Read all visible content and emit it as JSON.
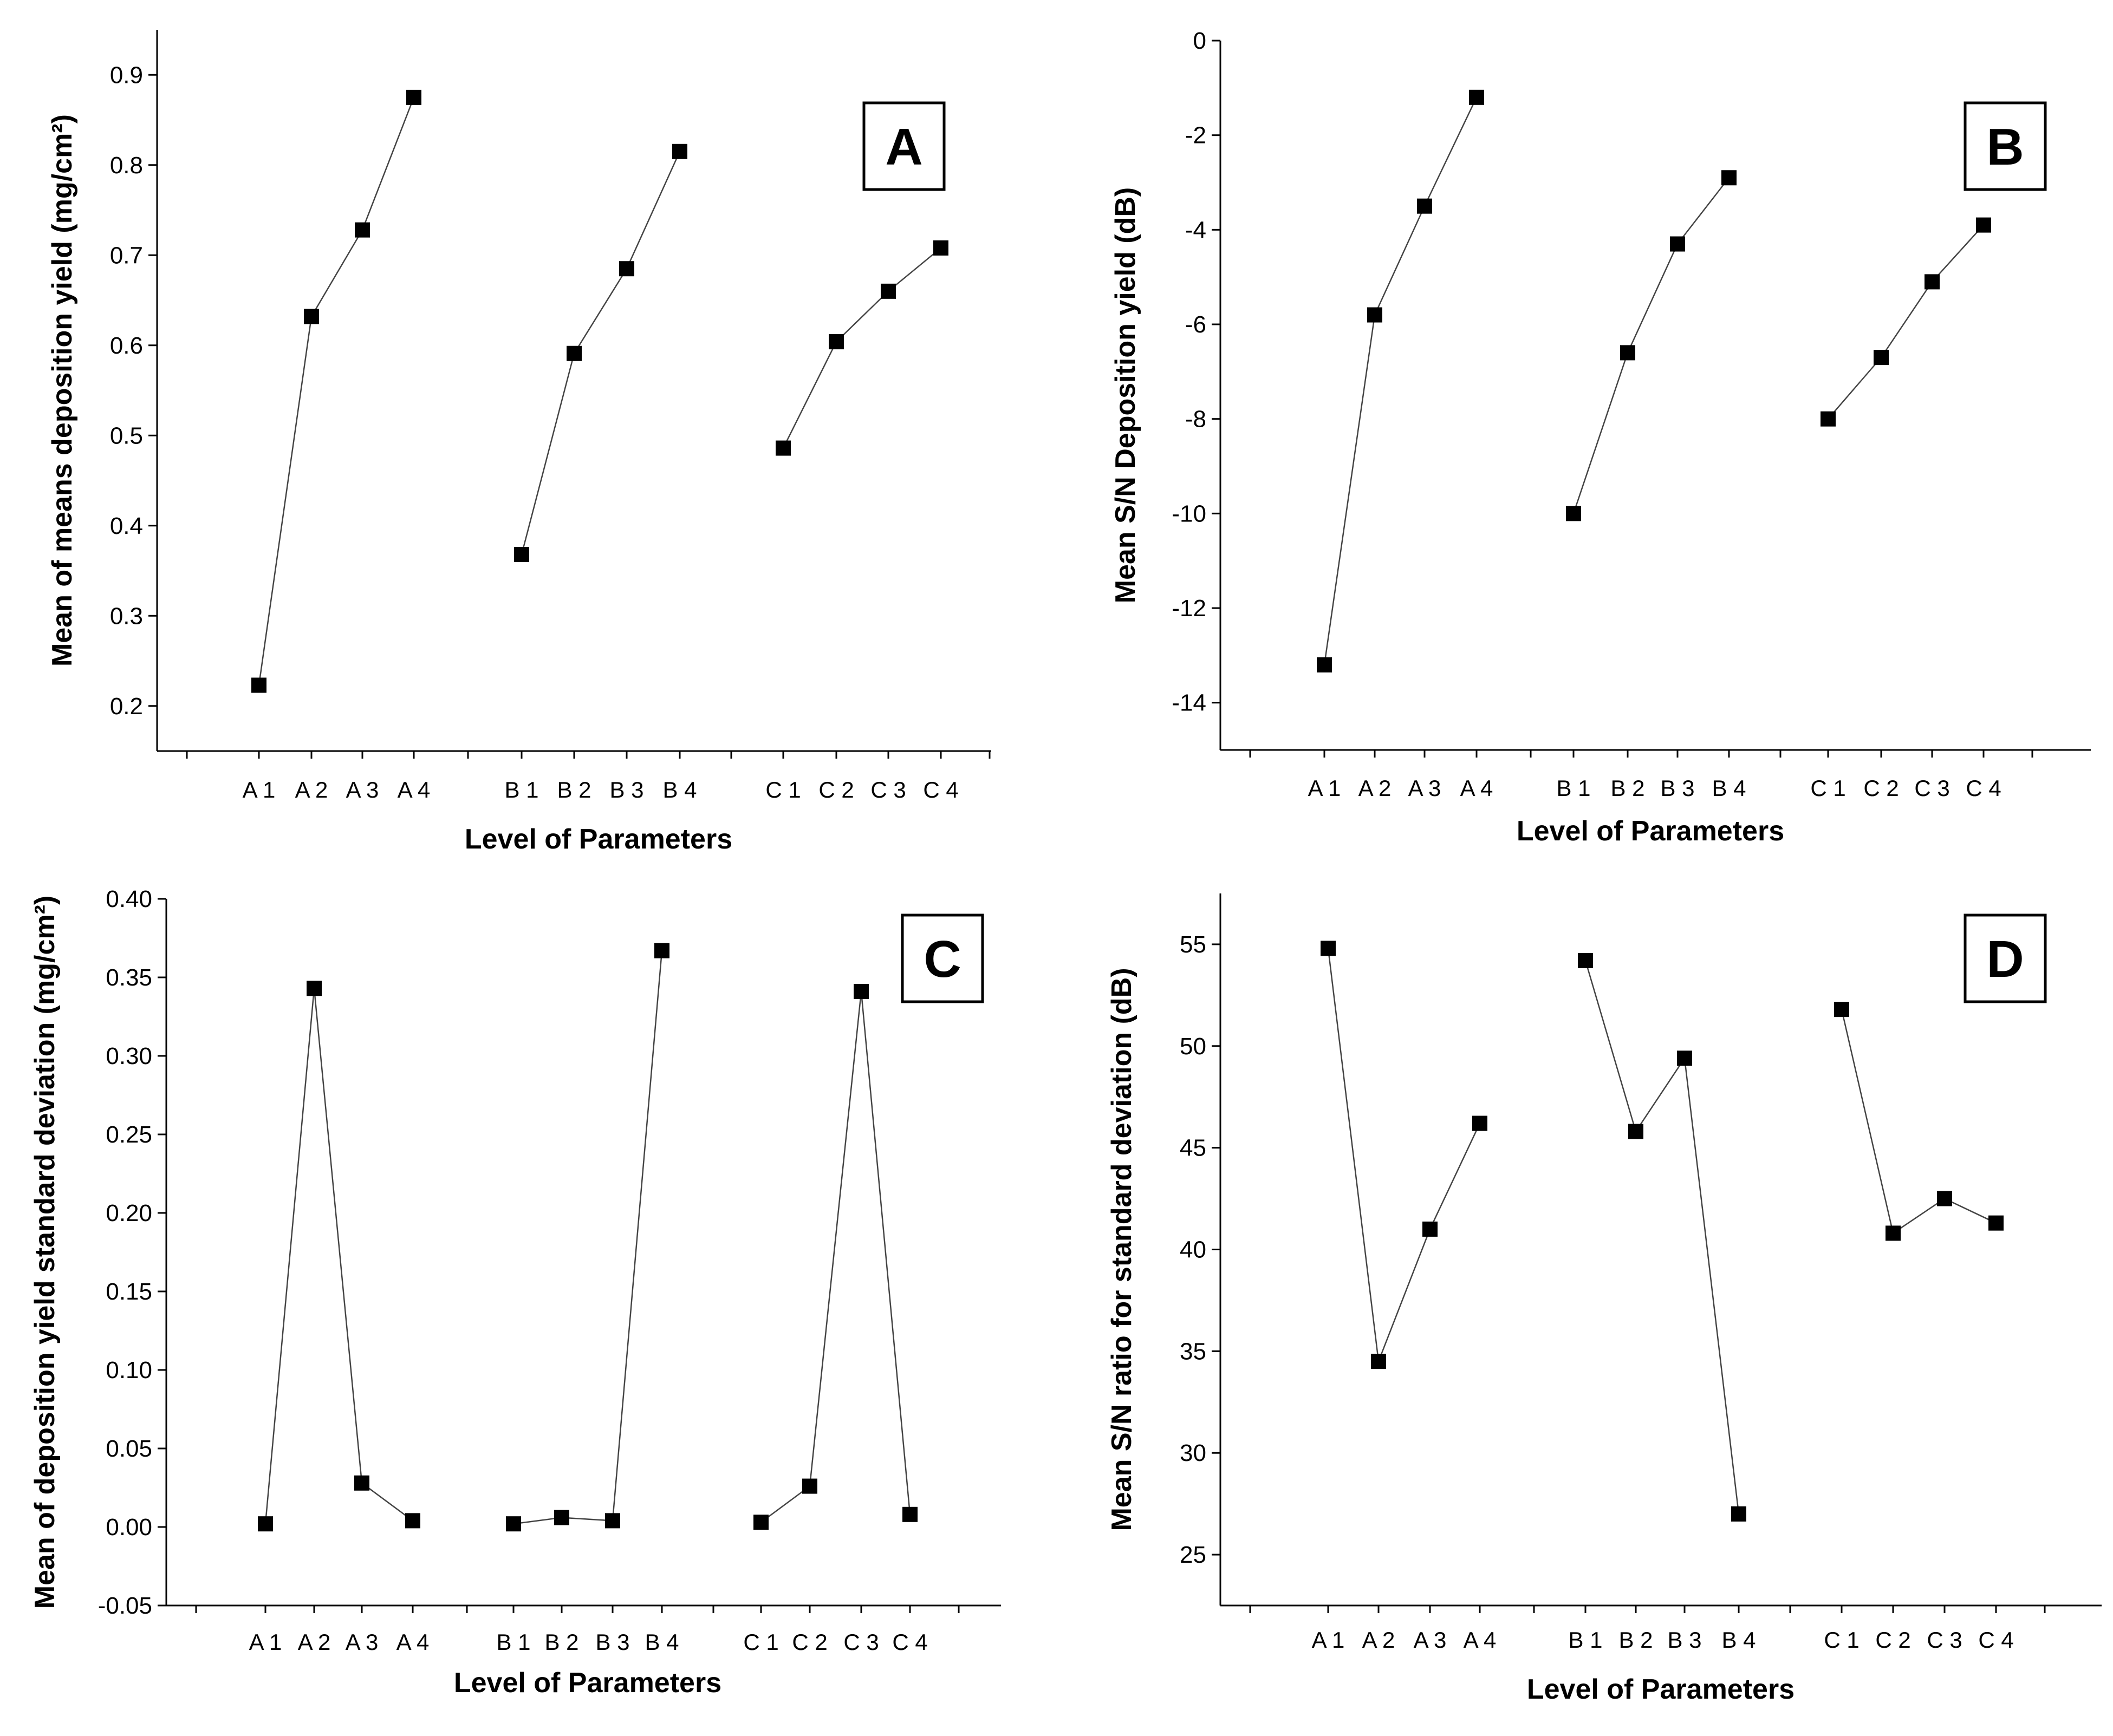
{
  "chart_data": [
    {
      "panel": "A",
      "type": "line",
      "ylabel": "Mean of means deposition yield (mg/cm²)",
      "xlabel": "Level of Parameters",
      "ylim": [
        0.15,
        0.95
      ],
      "yticks": [
        0.2,
        0.3,
        0.4,
        0.5,
        0.6,
        0.7,
        0.8,
        0.9
      ],
      "yticklabels": [
        "0.2",
        "0.3",
        "0.4",
        "0.5",
        "0.6",
        "0.7",
        "0.8",
        "0.9"
      ],
      "series": [
        {
          "name": "A",
          "categories": [
            "A 1",
            "A 2",
            "A 3",
            "A 4"
          ],
          "values": [
            0.223,
            0.632,
            0.728,
            0.875
          ]
        },
        {
          "name": "B",
          "categories": [
            "B 1",
            "B 2",
            "B 3",
            "B 4"
          ],
          "values": [
            0.368,
            0.591,
            0.685,
            0.815
          ]
        },
        {
          "name": "C",
          "categories": [
            "C 1",
            "C 2",
            "C 3",
            "C 4"
          ],
          "values": [
            0.486,
            0.604,
            0.66,
            0.708
          ]
        }
      ]
    },
    {
      "panel": "B",
      "type": "line",
      "ylabel": "Mean S/N Deposition yield (dB)",
      "xlabel": "Level of Parameters",
      "ylim": [
        -15,
        0
      ],
      "yticks": [
        0,
        -2,
        -4,
        -6,
        -8,
        -10,
        -12,
        -14
      ],
      "yticklabels": [
        "0",
        "-2",
        "-4",
        "-6",
        "-8",
        "-10",
        "-12",
        "-14"
      ],
      "series": [
        {
          "name": "A",
          "categories": [
            "A 1",
            "A 2",
            "A 3",
            "A 4"
          ],
          "values": [
            -13.2,
            -5.8,
            -3.5,
            -1.2
          ]
        },
        {
          "name": "B",
          "categories": [
            "B 1",
            "B 2",
            "B 3",
            "B 4"
          ],
          "values": [
            -10.0,
            -6.6,
            -4.3,
            -2.9
          ]
        },
        {
          "name": "C",
          "categories": [
            "C 1",
            "C 2",
            "C 3",
            "C 4"
          ],
          "values": [
            -8.0,
            -6.7,
            -5.1,
            -3.9
          ]
        }
      ]
    },
    {
      "panel": "C",
      "type": "line",
      "ylabel": "Mean of deposition yield standard deviation (mg/cm²)",
      "xlabel": "Level of Parameters",
      "ylim": [
        -0.05,
        0.4
      ],
      "yticks": [
        -0.05,
        0.0,
        0.05,
        0.1,
        0.15,
        0.2,
        0.25,
        0.3,
        0.35,
        0.4
      ],
      "yticklabels": [
        "-0.05",
        "0.00",
        "0.05",
        "0.10",
        "0.15",
        "0.20",
        "0.25",
        "0.30",
        "0.35",
        "0.40"
      ],
      "series": [
        {
          "name": "A",
          "categories": [
            "A 1",
            "A 2",
            "A 3",
            "A 4"
          ],
          "values": [
            0.002,
            0.343,
            0.028,
            0.004
          ]
        },
        {
          "name": "B",
          "categories": [
            "B 1",
            "B 2",
            "B 3",
            "B 4"
          ],
          "values": [
            0.002,
            0.006,
            0.004,
            0.367
          ]
        },
        {
          "name": "C",
          "categories": [
            "C 1",
            "C 2",
            "C 3",
            "C 4"
          ],
          "values": [
            0.003,
            0.026,
            0.341,
            0.008
          ]
        }
      ]
    },
    {
      "panel": "D",
      "type": "line",
      "ylabel": "Mean S/N ratio for standard deviation (dB)",
      "xlabel": "Level of Parameters",
      "ylim": [
        22.5,
        57.5
      ],
      "yticks": [
        25,
        30,
        35,
        40,
        45,
        50,
        55
      ],
      "yticklabels": [
        "25",
        "30",
        "35",
        "40",
        "45",
        "50",
        "55"
      ],
      "series": [
        {
          "name": "A",
          "categories": [
            "A 1",
            "A 2",
            "A 3",
            "A 4"
          ],
          "values": [
            54.8,
            34.5,
            41.0,
            46.2
          ]
        },
        {
          "name": "B",
          "categories": [
            "B 1",
            "B 2",
            "B 3",
            "B 4"
          ],
          "values": [
            54.2,
            45.8,
            49.4,
            27.0
          ]
        },
        {
          "name": "C",
          "categories": [
            "C 1",
            "C 2",
            "C 3",
            "C 4"
          ],
          "values": [
            51.8,
            40.8,
            42.5,
            41.3
          ]
        }
      ]
    }
  ]
}
